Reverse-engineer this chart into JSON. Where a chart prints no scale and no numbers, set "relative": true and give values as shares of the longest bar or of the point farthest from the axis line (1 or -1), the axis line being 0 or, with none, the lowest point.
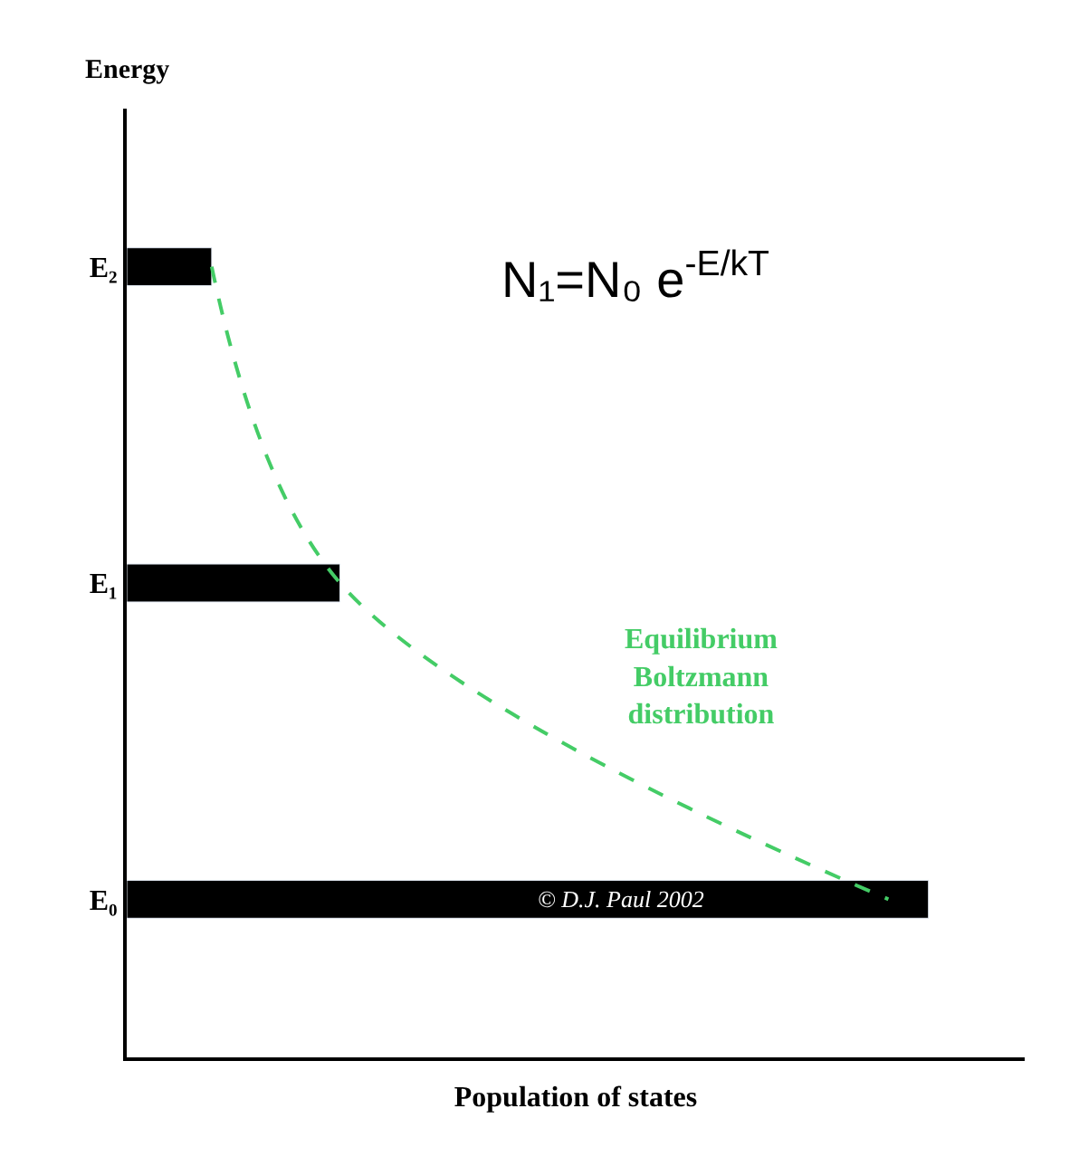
{
  "chart_data": {
    "type": "bar",
    "orientation": "horizontal",
    "relative": true,
    "xlabel": "Population of states",
    "ylabel": "Energy",
    "categories": [
      "E₂",
      "E₁",
      "E₀"
    ],
    "series": [
      {
        "color": "#000000",
        "values": [
          0.106,
          0.266,
          1
        ]
      },
      {
        "type": "line",
        "name": "Equilibrium Boltzmann distribution",
        "color": "#44cc66",
        "line_style": "dashed",
        "values": [
          0.106,
          0.266,
          0.95
        ]
      }
    ],
    "annotations": [
      "N₁=N₀ e$^{-E/kT}$",
      "© D.J. Paul 2002"
    ]
  }
}
